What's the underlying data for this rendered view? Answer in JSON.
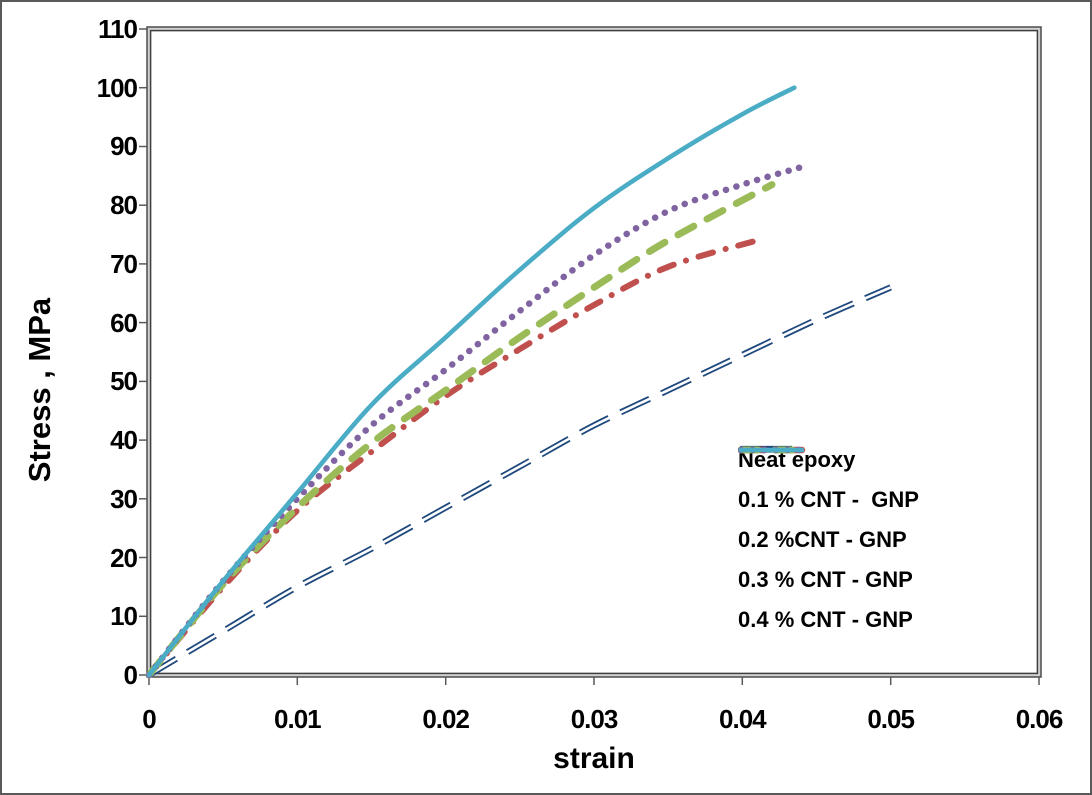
{
  "figure": {
    "background": "#ffffff",
    "outer_border_color": "#595959",
    "plot_border_color": "#3f3f3f",
    "tick_color": "#595959"
  },
  "chart_data": {
    "type": "line",
    "title": "",
    "xlabel": "strain",
    "ylabel": "Stress , MPa",
    "xlim": [
      0,
      0.06
    ],
    "ylim": [
      0,
      110
    ],
    "grid": false,
    "legend_position": "inside lower-right",
    "x_ticks": [
      0,
      0.01,
      0.02,
      0.03,
      0.04,
      0.05,
      0.06
    ],
    "x_tick_labels": [
      "0",
      "0.01",
      "0.02",
      "0.03",
      "0.04",
      "0.05",
      "0.06"
    ],
    "y_ticks": [
      0,
      10,
      20,
      30,
      40,
      50,
      60,
      70,
      80,
      90,
      100,
      110
    ],
    "y_tick_labels": [
      "0",
      "10",
      "20",
      "30",
      "40",
      "50",
      "60",
      "70",
      "80",
      "90",
      "100",
      "110"
    ],
    "series": [
      {
        "name": "Neat epoxy",
        "color": "#1F497D",
        "style": "double-dash",
        "points": [
          [
            0,
            0
          ],
          [
            0.005,
            7.5
          ],
          [
            0.01,
            15
          ],
          [
            0.015,
            21.5
          ],
          [
            0.02,
            28.5
          ],
          [
            0.025,
            35.5
          ],
          [
            0.03,
            42.5
          ],
          [
            0.035,
            48.5
          ],
          [
            0.04,
            54.5
          ],
          [
            0.045,
            60.5
          ],
          [
            0.05,
            66
          ]
        ]
      },
      {
        "name": "0.1 % CNT -  GNP",
        "color": "#C0504D",
        "style": "dash-dot",
        "points": [
          [
            0,
            0
          ],
          [
            0.005,
            15
          ],
          [
            0.01,
            28
          ],
          [
            0.015,
            38
          ],
          [
            0.02,
            47.5
          ],
          [
            0.025,
            55.5
          ],
          [
            0.03,
            63
          ],
          [
            0.035,
            69.5
          ],
          [
            0.041,
            74
          ]
        ]
      },
      {
        "name": "0.2 %CNT - GNP",
        "color": "#9BBB59",
        "style": "dash",
        "points": [
          [
            0,
            0
          ],
          [
            0.005,
            15.5
          ],
          [
            0.01,
            28.5
          ],
          [
            0.015,
            39.5
          ],
          [
            0.02,
            48.5
          ],
          [
            0.025,
            57.5
          ],
          [
            0.03,
            66
          ],
          [
            0.035,
            74
          ],
          [
            0.042,
            83.5
          ]
        ]
      },
      {
        "name": "0.3 % CNT - GNP",
        "color": "#8064A2",
        "style": "dot",
        "points": [
          [
            0,
            0
          ],
          [
            0.005,
            16
          ],
          [
            0.01,
            30
          ],
          [
            0.015,
            42.5
          ],
          [
            0.02,
            52
          ],
          [
            0.025,
            62
          ],
          [
            0.03,
            71.5
          ],
          [
            0.035,
            79
          ],
          [
            0.04,
            83.5
          ],
          [
            0.044,
            86.5
          ]
        ]
      },
      {
        "name": "0.4 % CNT - GNP",
        "color": "#4BACC6",
        "style": "solid",
        "points": [
          [
            0,
            0
          ],
          [
            0.005,
            16
          ],
          [
            0.01,
            31
          ],
          [
            0.015,
            46
          ],
          [
            0.02,
            57.5
          ],
          [
            0.025,
            69
          ],
          [
            0.03,
            79.5
          ],
          [
            0.035,
            88
          ],
          [
            0.04,
            95.5
          ],
          [
            0.0435,
            100
          ]
        ]
      }
    ]
  }
}
